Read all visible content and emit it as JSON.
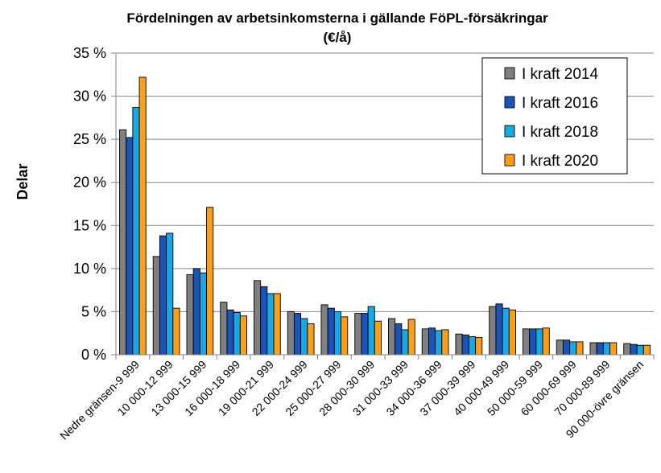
{
  "chart_data": {
    "type": "bar",
    "title_line1": "Fördelningen av arbetsinkomsterna i  gällande FöPL-försäkringar",
    "title_line2": "(€/å)",
    "ylabel": "Delar",
    "xlabel": "",
    "ylim": [
      0,
      35
    ],
    "yticks": [
      "0 %",
      "5 %",
      "10 %",
      "15 %",
      "20 %",
      "25 %",
      "30 %",
      "35 %"
    ],
    "grid": true,
    "legend_position": "top-right",
    "categories": [
      "Nedre gränsen-9 999",
      "10 000-12 999",
      "13 000-15 999",
      "16 000-18 999",
      "19 000-21 999",
      "22 000-24 999",
      "25 000-27 999",
      "28 000-30 999",
      "31 000-33 999",
      "34 000-36 999",
      "37 000-39 999",
      "40 000-49 999",
      "50 000-59 999",
      "60 000-69 999",
      "70 000-89 999",
      "90 000-övre gränsen"
    ],
    "series": [
      {
        "name": "I kraft 2014",
        "color": "#808080",
        "values": [
          26.1,
          11.4,
          9.3,
          6.1,
          8.6,
          5.0,
          5.8,
          4.8,
          4.2,
          3.0,
          2.4,
          5.6,
          3.0,
          1.7,
          1.4,
          1.3
        ]
      },
      {
        "name": "I kraft 2016",
        "color": "#1a54b8",
        "values": [
          25.2,
          13.8,
          10.0,
          5.2,
          7.9,
          4.8,
          5.4,
          4.8,
          3.6,
          3.1,
          2.3,
          5.9,
          3.0,
          1.7,
          1.4,
          1.2
        ]
      },
      {
        "name": "I kraft 2018",
        "color": "#19a8e6",
        "values": [
          28.7,
          14.1,
          9.5,
          4.9,
          7.1,
          4.2,
          5.0,
          5.6,
          2.9,
          2.8,
          2.1,
          5.4,
          3.0,
          1.5,
          1.4,
          1.1
        ]
      },
      {
        "name": "I kraft 2020",
        "color": "#ff9e19",
        "values": [
          32.2,
          5.4,
          17.1,
          4.5,
          7.1,
          3.6,
          4.4,
          3.9,
          4.1,
          2.9,
          2.0,
          5.2,
          3.1,
          1.5,
          1.4,
          1.1
        ]
      }
    ]
  }
}
